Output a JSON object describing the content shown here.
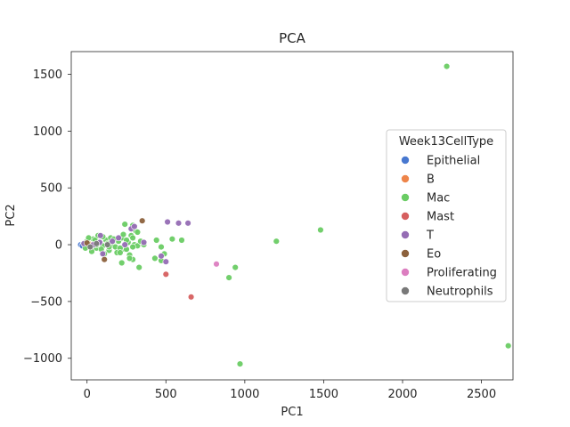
{
  "chart_data": {
    "type": "scatter",
    "title": "PCA",
    "xlabel": "PC1",
    "ylabel": "PC2",
    "xlim": [
      -100,
      2700
    ],
    "ylim": [
      -1190,
      1700
    ],
    "xticks": [
      0,
      500,
      1000,
      1500,
      2000,
      2500
    ],
    "yticks": [
      -1000,
      -500,
      0,
      500,
      1000,
      1500
    ],
    "xtick_labels": [
      "0",
      "500",
      "1000",
      "1500",
      "2000",
      "2500"
    ],
    "ytick_labels": [
      "−1000",
      "−500",
      "0",
      "500",
      "1000",
      "1500"
    ],
    "grid": false,
    "legend": {
      "title": "Week13CellType",
      "placement": "center-right"
    },
    "series": [
      {
        "name": "Epithelial",
        "color": "#4878d0",
        "points": [
          [
            -40,
            0
          ],
          [
            -25,
            5
          ],
          [
            -10,
            -8
          ],
          [
            5,
            3
          ],
          [
            20,
            10
          ],
          [
            35,
            -5
          ],
          [
            -30,
            -10
          ],
          [
            10,
            15
          ]
        ]
      },
      {
        "name": "B",
        "color": "#ee854a",
        "points": [
          [
            -15,
            3
          ],
          [
            0,
            -5
          ],
          [
            15,
            8
          ],
          [
            30,
            0
          ],
          [
            -5,
            12
          ]
        ]
      },
      {
        "name": "Mac",
        "color": "#6acc64",
        "points": [
          [
            -20,
            10
          ],
          [
            0,
            30
          ],
          [
            20,
            -20
          ],
          [
            40,
            50
          ],
          [
            60,
            -30
          ],
          [
            80,
            20
          ],
          [
            100,
            -10
          ],
          [
            120,
            40
          ],
          [
            140,
            -50
          ],
          [
            160,
            10
          ],
          [
            180,
            -20
          ],
          [
            200,
            30
          ],
          [
            220,
            60
          ],
          [
            240,
            -40
          ],
          [
            260,
            20
          ],
          [
            280,
            80
          ],
          [
            300,
            0
          ],
          [
            320,
            -10
          ],
          [
            340,
            30
          ],
          [
            360,
            0
          ],
          [
            30,
            -60
          ],
          [
            70,
            80
          ],
          [
            110,
            -80
          ],
          [
            150,
            60
          ],
          [
            190,
            -70
          ],
          [
            230,
            90
          ],
          [
            270,
            -90
          ],
          [
            310,
            120
          ],
          [
            50,
            40
          ],
          [
            90,
            -40
          ],
          [
            130,
            10
          ],
          [
            170,
            50
          ],
          [
            210,
            -30
          ],
          [
            250,
            40
          ],
          [
            290,
            -20
          ],
          [
            -10,
            -30
          ],
          [
            10,
            60
          ],
          [
            60,
            0
          ],
          [
            100,
            70
          ],
          [
            140,
            -20
          ],
          [
            240,
            180
          ],
          [
            290,
            170
          ],
          [
            320,
            110
          ],
          [
            290,
            60
          ],
          [
            330,
            -200
          ],
          [
            220,
            -160
          ],
          [
            290,
            -130
          ],
          [
            210,
            -70
          ],
          [
            440,
            40
          ],
          [
            470,
            -20
          ],
          [
            490,
            -80
          ],
          [
            470,
            -140
          ],
          [
            430,
            -120
          ],
          [
            540,
            50
          ],
          [
            600,
            40
          ],
          [
            270,
            -120
          ],
          [
            250,
            -40
          ],
          [
            900,
            -290
          ],
          [
            940,
            -200
          ],
          [
            970,
            -1050
          ],
          [
            1200,
            30
          ],
          [
            1480,
            130
          ],
          [
            2280,
            1570
          ],
          [
            2670,
            -890
          ]
        ]
      },
      {
        "name": "Mast",
        "color": "#d65f5f",
        "points": [
          [
            500,
            -260
          ],
          [
            660,
            -460
          ]
        ]
      },
      {
        "name": "T",
        "color": "#956cb4",
        "points": [
          [
            -20,
            10
          ],
          [
            40,
            0
          ],
          [
            80,
            20
          ],
          [
            100,
            -80
          ],
          [
            200,
            60
          ],
          [
            240,
            0
          ],
          [
            280,
            140
          ],
          [
            360,
            20
          ],
          [
            300,
            160
          ],
          [
            510,
            200
          ],
          [
            580,
            190
          ],
          [
            640,
            190
          ],
          [
            470,
            -100
          ],
          [
            500,
            -150
          ],
          [
            85,
            80
          ],
          [
            160,
            30
          ]
        ]
      },
      {
        "name": "Eo",
        "color": "#8c613c",
        "points": [
          [
            0,
            15
          ],
          [
            110,
            -130
          ],
          [
            350,
            210
          ]
        ]
      },
      {
        "name": "Proliferating",
        "color": "#dc7ec0",
        "points": [
          [
            820,
            -170
          ]
        ]
      },
      {
        "name": "Neutrophils",
        "color": "#797979",
        "points": [
          [
            20,
            -20
          ],
          [
            60,
            10
          ],
          [
            130,
            0
          ]
        ]
      }
    ]
  }
}
